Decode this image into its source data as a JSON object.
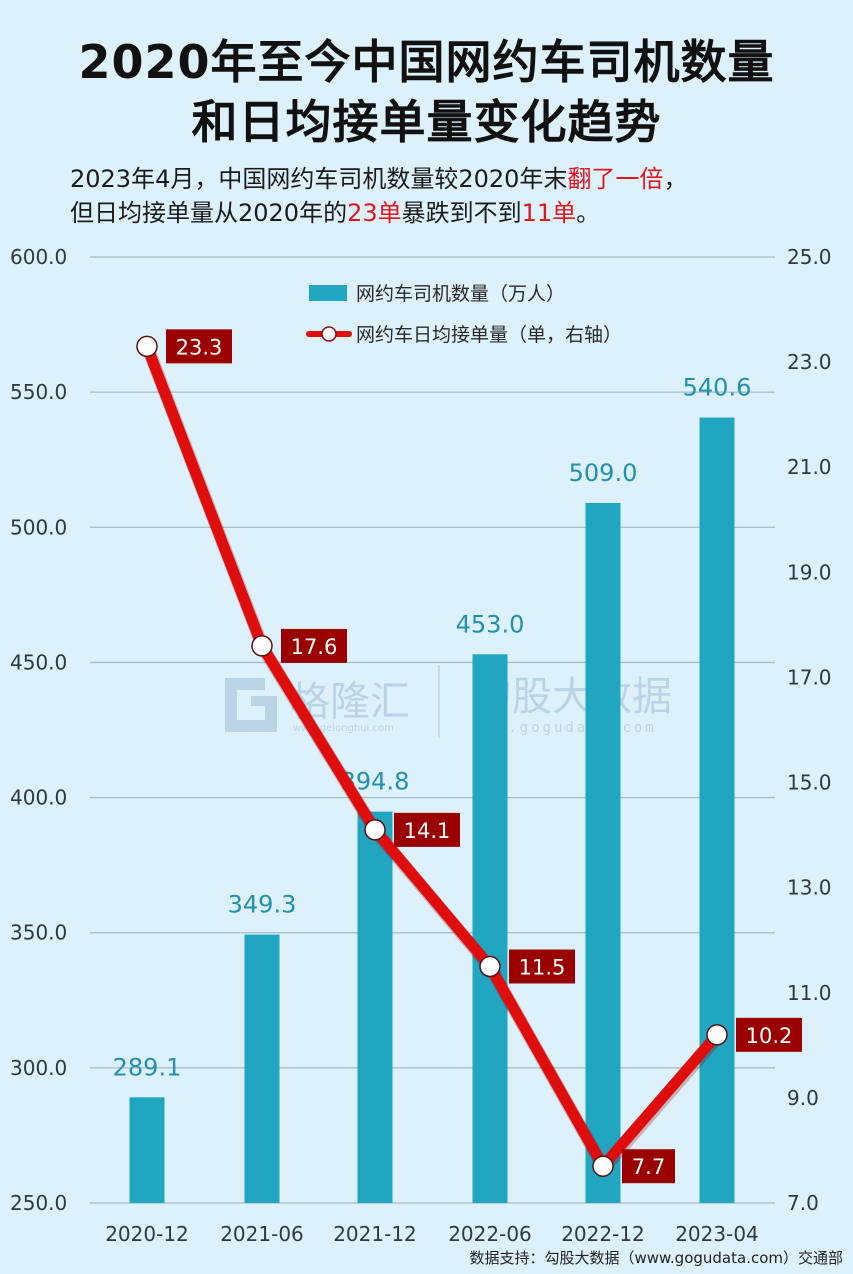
{
  "header": {
    "title_line1": "2020年至今中国网约车司机数量",
    "title_line2": "和日均接单量变化趋势",
    "subtitle_line1": {
      "part1": "2023年4月，中国网约车司机数量较2020年末",
      "highlight1": "翻了一倍",
      "part2": "，"
    },
    "subtitle_line2": {
      "part1": "但日均接单量从2020年的",
      "highlight1": "23单",
      "part2": "暴跌到不到",
      "highlight2": "11单",
      "part3": "。"
    }
  },
  "legend": {
    "bar_label": "网约车司机数量（万人）",
    "line_label": "网约车日均接单量（单，右轴）"
  },
  "watermark": {
    "left_brand": "格隆汇",
    "left_url": "www.gelonghui.com",
    "right_brand": "勾股大数据",
    "right_url": "www.gogudata.com"
  },
  "source": "数据支持：勾股大数据（www.gogudata.com）交通部",
  "colors": {
    "background": "#dcf1fb",
    "bar": "#21a6c2",
    "bar_label": "#2390ad",
    "line": "#e00d0d",
    "line_label_bg": "#9a0000",
    "line_label_text": "#ffffff",
    "grid": "#a7bcc6",
    "axis_text": "#2e3a40",
    "highlight": "#e0161f"
  },
  "chart_data": {
    "type": "bar+line",
    "title": "2020年至今中国网约车司机数量和日均接单量变化趋势",
    "categories": [
      "2020-12",
      "2021-06",
      "2021-12",
      "2022-06",
      "2022-12",
      "2023-04"
    ],
    "series": [
      {
        "name": "网约车司机数量（万人）",
        "type": "bar",
        "axis": "left",
        "values": [
          289.1,
          349.3,
          394.8,
          453.0,
          509.0,
          540.6
        ],
        "labels": [
          "289.1",
          "349.3",
          "394.8",
          "453.0",
          "509.0",
          "540.6"
        ]
      },
      {
        "name": "网约车日均接单量（单，右轴）",
        "type": "line",
        "axis": "right",
        "values": [
          23.3,
          17.6,
          14.1,
          11.5,
          7.7,
          10.2
        ],
        "labels": [
          "23.3",
          "17.6",
          "14.1",
          "11.5",
          "7.7",
          "10.2"
        ]
      }
    ],
    "y_left": {
      "range": [
        250,
        600
      ],
      "ticks": [
        "600.0",
        "550.0",
        "500.0",
        "450.0",
        "400.0",
        "350.0",
        "300.0",
        "250.0"
      ]
    },
    "y_right": {
      "range": [
        7,
        25
      ],
      "ticks": [
        "25.0",
        "23.0",
        "21.0",
        "19.0",
        "17.0",
        "15.0",
        "13.0",
        "11.0",
        "9.0",
        "7.0"
      ]
    },
    "xlabel": "",
    "ylabel": "",
    "grid": true,
    "legend_position": "top-center"
  }
}
